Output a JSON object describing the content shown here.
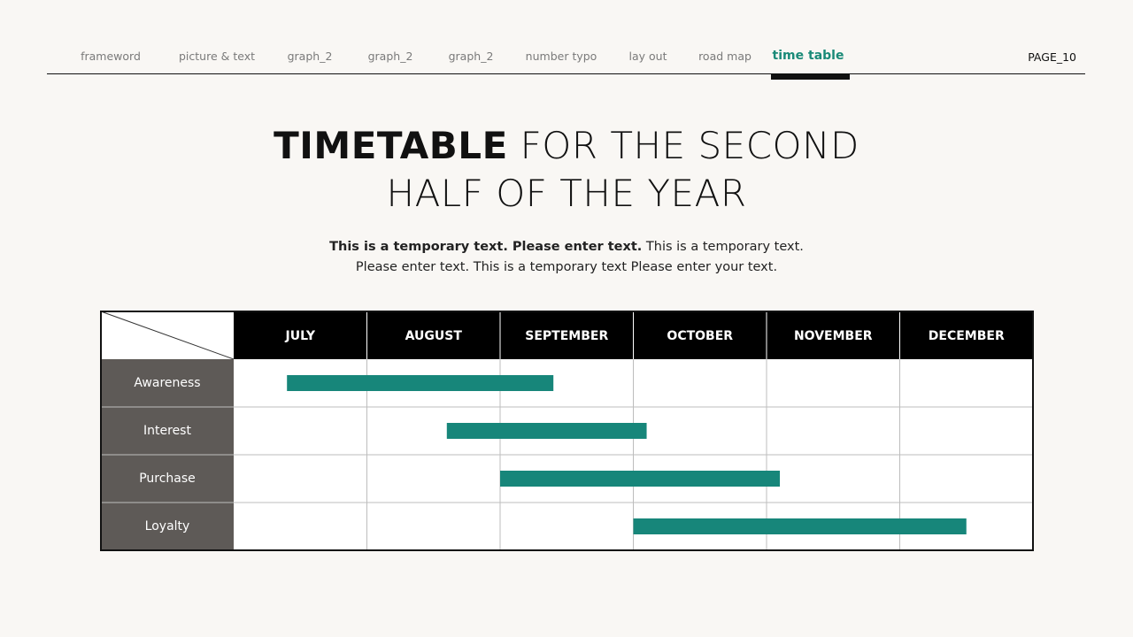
{
  "nav": {
    "items": [
      "frameword",
      "picture & text",
      "graph_2",
      "graph_2",
      "graph_2",
      "number typo",
      "lay out",
      "road map",
      "time table"
    ],
    "active": 8,
    "page": "PAGE_10"
  },
  "title": {
    "bold": "TIMETABLE",
    "line1": "FOR THE SECOND",
    "line2": "HALF OF THE YEAR"
  },
  "subtitle": {
    "bold": "This is a temporary text. Please enter text.",
    "line1": "This is a temporary text.",
    "line2": "Please enter text. This is a temporary text Please enter your text."
  },
  "timeline": {
    "columns": [
      "JULY",
      "AUGUST",
      "SEPTEMBER",
      "OCTOBER",
      "NOVEMBER",
      "DECEMBER"
    ],
    "color": "#17867a",
    "rows": [
      {
        "label": "Awareness",
        "start": 0.4,
        "end": 2.4
      },
      {
        "label": "Interest",
        "start": 1.6,
        "end": 3.1
      },
      {
        "label": "Purchase",
        "start": 2.0,
        "end": 4.1
      },
      {
        "label": "Loyalty",
        "start": 3.0,
        "end": 5.5
      }
    ]
  }
}
